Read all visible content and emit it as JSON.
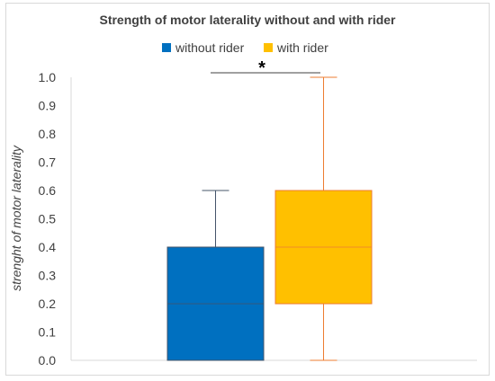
{
  "chart_data": {
    "type": "box",
    "title": "Strength of motor laterality without and with rider",
    "xlabel": "",
    "ylabel": "strenght of motor laterality",
    "ylim": [
      0,
      1
    ],
    "yticks": [
      "0.0",
      "0.1",
      "0.2",
      "0.3",
      "0.4",
      "0.5",
      "0.6",
      "0.7",
      "0.8",
      "0.9",
      "1.0"
    ],
    "grid": false,
    "legend_position": "top",
    "significance_marker": "*",
    "series": [
      {
        "name": "without rider",
        "color": "#0070c0",
        "whisker_color": "#44546a",
        "min": 0.0,
        "q1": 0.0,
        "median": 0.2,
        "q3": 0.4,
        "max": 0.6
      },
      {
        "name": "with rider",
        "color": "#ffc000",
        "whisker_color": "#ed7d31",
        "min": 0.0,
        "q1": 0.2,
        "median": 0.4,
        "q3": 0.6,
        "max": 1.0
      }
    ]
  }
}
